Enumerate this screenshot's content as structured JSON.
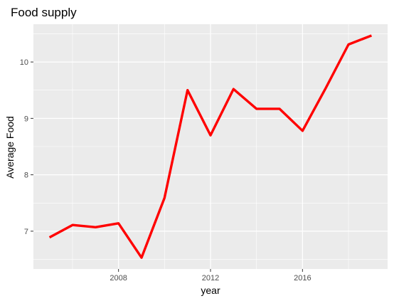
{
  "chart_data": {
    "type": "line",
    "title": "Food supply",
    "xlabel": "year",
    "ylabel": "Average Food",
    "x": [
      2005,
      2006,
      2007,
      2008,
      2009,
      2010,
      2011,
      2012,
      2013,
      2014,
      2015,
      2016,
      2017,
      2018,
      2019
    ],
    "series": [
      {
        "values": [
          6.89,
          7.11,
          7.07,
          7.14,
          6.53,
          7.59,
          9.5,
          8.7,
          9.52,
          9.17,
          9.17,
          8.78,
          9.53,
          10.31,
          10.47
        ],
        "color": "#ff0000"
      }
    ],
    "xticks": [
      2008,
      2012,
      2016
    ],
    "xtick_labels": [
      "2008",
      "2012",
      "2016"
    ],
    "yticks": [
      7,
      8,
      9,
      10
    ],
    "ytick_labels": [
      "7",
      "8",
      "9",
      "10"
    ],
    "xlim": [
      2004.3,
      2019.7
    ],
    "ylim": [
      6.33,
      10.67
    ],
    "grid": true,
    "legend": "none",
    "panel_background": "#ebebeb",
    "grid_color": "#ffffff"
  }
}
